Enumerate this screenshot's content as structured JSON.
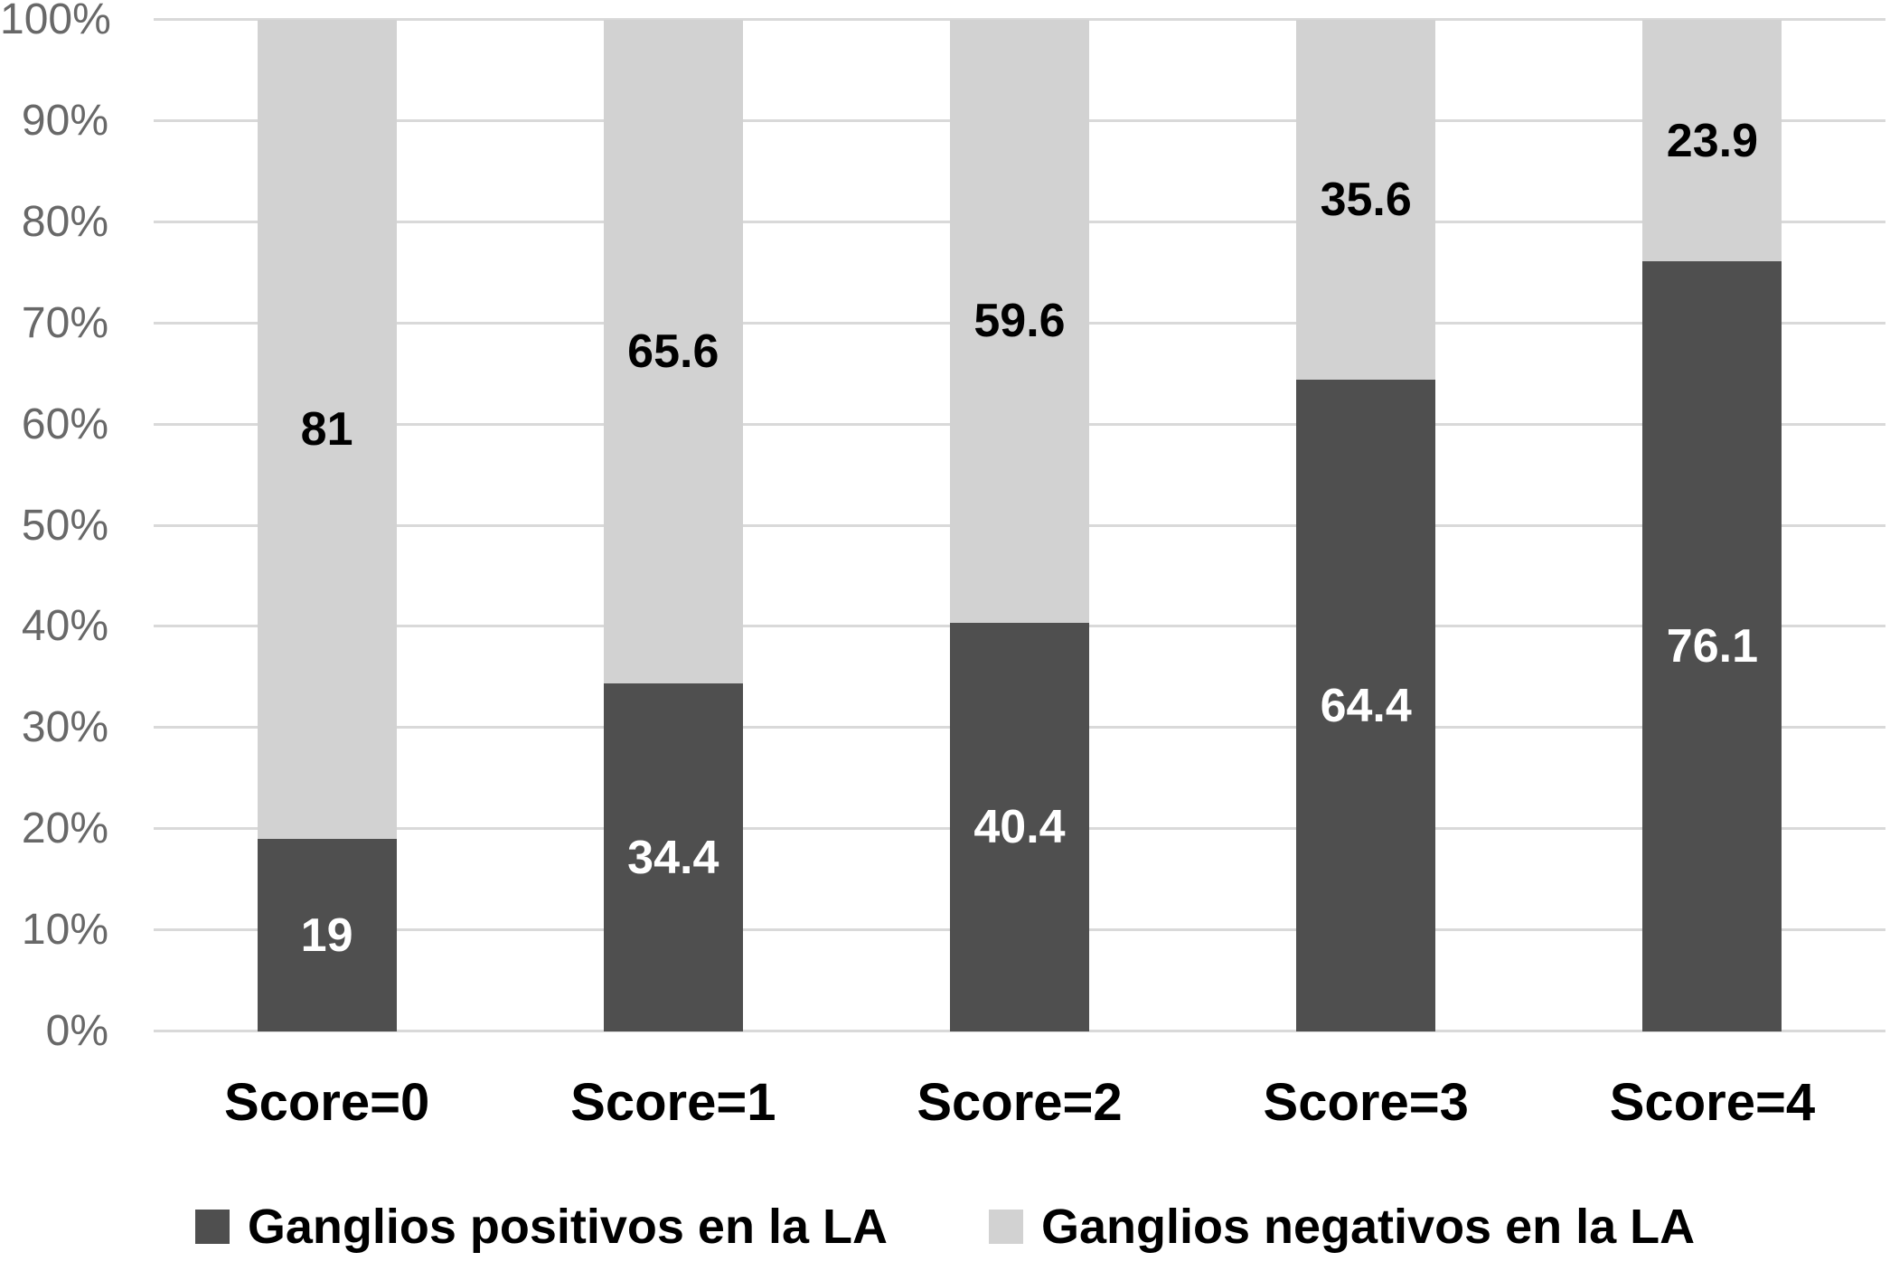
{
  "chart_data": {
    "type": "bar",
    "stacked": true,
    "percent_stacked": true,
    "title": "",
    "xlabel": "",
    "ylabel": "",
    "categories": [
      "Score=0",
      "Score=1",
      "Score=2",
      "Score=3",
      "Score=4"
    ],
    "series": [
      {
        "name": "Ganglios positivos en la LA",
        "color": "#4f4f4f",
        "label_color": "#ffffff",
        "values": [
          19,
          34.4,
          40.4,
          64.4,
          76.1
        ]
      },
      {
        "name": "Ganglios negativos en la LA",
        "color": "#d2d2d2",
        "label_color": "#000000",
        "values": [
          81,
          65.6,
          59.6,
          35.6,
          23.9
        ]
      }
    ],
    "y_axis": {
      "min": 0,
      "max": 100,
      "grid": true,
      "gridline_color": "#d9d9d9",
      "tick_label_color": "#686868",
      "ticks": [
        {
          "value": 0,
          "label": "0%"
        },
        {
          "value": 10,
          "label": "10%"
        },
        {
          "value": 20,
          "label": "20%"
        },
        {
          "value": 30,
          "label": "30%"
        },
        {
          "value": 40,
          "label": "40%"
        },
        {
          "value": 50,
          "label": "50%"
        },
        {
          "value": 60,
          "label": "60%"
        },
        {
          "value": 70,
          "label": "70%"
        },
        {
          "value": 80,
          "label": "80%"
        },
        {
          "value": 90,
          "label": "90%"
        },
        {
          "value": 100,
          "label": "100%"
        }
      ]
    },
    "legend_position": "bottom",
    "data_labels": "center-of-segment",
    "background_color": "#ffffff"
  }
}
